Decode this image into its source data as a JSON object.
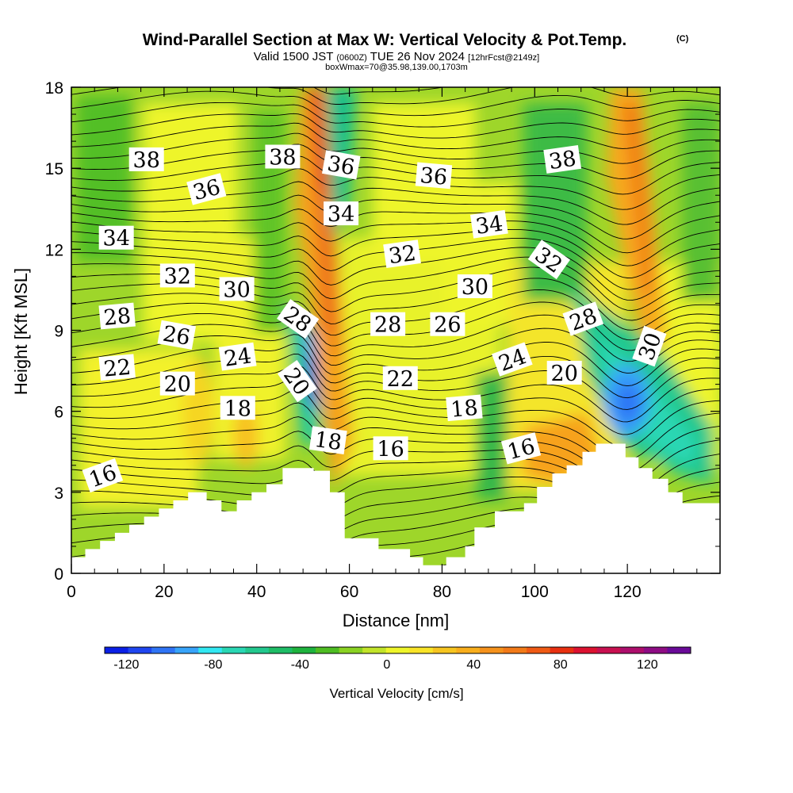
{
  "header": {
    "title": "Wind-Parallel Section at Max W: Vertical Velocity & Pot.Temp.",
    "title_mark": "(C)",
    "valid_prefix": "Valid 1500 JST",
    "valid_utc": "(0600Z)",
    "valid_date": "TUE 26 Nov 2024",
    "forecast": "[12hrFcst@2149z]",
    "box_info": "boxWmax=70@35.98,139.00,1703m"
  },
  "chart_data": {
    "type": "heatmap",
    "xlabel": "Distance [nm]",
    "ylabel": "Height [Kft MSL]",
    "xlim": [
      0,
      140
    ],
    "ylim": [
      0,
      18
    ],
    "x_ticks": [
      "0",
      "20",
      "40",
      "60",
      "80",
      "100",
      "120"
    ],
    "y_ticks": [
      "0",
      "3",
      "6",
      "9",
      "12",
      "15",
      "18"
    ],
    "colorbar": {
      "label": "Vertical Velocity [cm/s]",
      "tick_labels": [
        "-120",
        "-80",
        "-40",
        "0",
        "40",
        "80",
        "120"
      ],
      "min": -130,
      "max": 140,
      "step": 10,
      "colors": [
        "#0a1fe6",
        "#1f46f0",
        "#2f74f5",
        "#38a4fa",
        "#32e8f2",
        "#2ad7b4",
        "#22c88e",
        "#1ebd66",
        "#1eb33e",
        "#4ebd22",
        "#8ad222",
        "#c2e42a",
        "#eef52a",
        "#f9e428",
        "#f6c520",
        "#f8ae1c",
        "#f5921c",
        "#f27a18",
        "#ef5a14",
        "#e83010",
        "#dc1230",
        "#c81050",
        "#ad0e6c",
        "#8e0c84",
        "#6a0a98"
      ]
    },
    "contour_variable": "Pot.Temp. (C)",
    "contour_labels": [
      {
        "text": "38",
        "x": 16.2,
        "y": 15.3,
        "angle": 0
      },
      {
        "text": "38",
        "x": 45.6,
        "y": 15.4,
        "angle": 0
      },
      {
        "text": "36",
        "x": 58.2,
        "y": 15.1,
        "angle": 10
      },
      {
        "text": "36",
        "x": 78.2,
        "y": 14.7,
        "angle": 5
      },
      {
        "text": "38",
        "x": 106.0,
        "y": 15.3,
        "angle": -8
      },
      {
        "text": "36",
        "x": 29.2,
        "y": 14.2,
        "angle": -15
      },
      {
        "text": "34",
        "x": 9.7,
        "y": 12.4,
        "angle": 0
      },
      {
        "text": "34",
        "x": 58.2,
        "y": 13.3,
        "angle": 0
      },
      {
        "text": "34",
        "x": 90.2,
        "y": 12.9,
        "angle": -8
      },
      {
        "text": "32",
        "x": 22.9,
        "y": 11.0,
        "angle": 0
      },
      {
        "text": "32",
        "x": 71.4,
        "y": 11.8,
        "angle": -8
      },
      {
        "text": "32",
        "x": 103.0,
        "y": 11.6,
        "angle": 35
      },
      {
        "text": "30",
        "x": 35.7,
        "y": 10.5,
        "angle": 0
      },
      {
        "text": "30",
        "x": 87.1,
        "y": 10.6,
        "angle": 0
      },
      {
        "text": "30",
        "x": 124.9,
        "y": 8.4,
        "angle": -70
      },
      {
        "text": "28",
        "x": 9.9,
        "y": 9.5,
        "angle": -5
      },
      {
        "text": "28",
        "x": 48.8,
        "y": 9.4,
        "angle": 35
      },
      {
        "text": "28",
        "x": 68.3,
        "y": 9.2,
        "angle": 0
      },
      {
        "text": "26",
        "x": 22.7,
        "y": 8.8,
        "angle": 10
      },
      {
        "text": "26",
        "x": 81.2,
        "y": 9.2,
        "angle": 0
      },
      {
        "text": "28",
        "x": 110.5,
        "y": 9.4,
        "angle": -20
      },
      {
        "text": "24",
        "x": 35.9,
        "y": 8.0,
        "angle": -8
      },
      {
        "text": "24",
        "x": 95.2,
        "y": 7.9,
        "angle": -20
      },
      {
        "text": "22",
        "x": 9.9,
        "y": 7.6,
        "angle": -5
      },
      {
        "text": "20",
        "x": 22.9,
        "y": 7.0,
        "angle": 0
      },
      {
        "text": "20",
        "x": 48.6,
        "y": 7.1,
        "angle": 55
      },
      {
        "text": "22",
        "x": 71.0,
        "y": 7.2,
        "angle": 0
      },
      {
        "text": "20",
        "x": 106.4,
        "y": 7.4,
        "angle": 0
      },
      {
        "text": "18",
        "x": 35.9,
        "y": 6.1,
        "angle": 0
      },
      {
        "text": "18",
        "x": 84.8,
        "y": 6.1,
        "angle": -5
      },
      {
        "text": "18",
        "x": 55.4,
        "y": 4.9,
        "angle": 8
      },
      {
        "text": "16",
        "x": 68.9,
        "y": 4.6,
        "angle": 0
      },
      {
        "text": "16",
        "x": 97.1,
        "y": 4.6,
        "angle": -15
      },
      {
        "text": "16",
        "x": 6.8,
        "y": 3.6,
        "angle": -20
      }
    ],
    "terrain_profile": [
      [
        0,
        0.6
      ],
      [
        3,
        0.6
      ],
      [
        3,
        0.9
      ],
      [
        6.2,
        0.9
      ],
      [
        6.2,
        1.2
      ],
      [
        9.4,
        1.2
      ],
      [
        9.4,
        1.5
      ],
      [
        12.5,
        1.5
      ],
      [
        12.5,
        1.8
      ],
      [
        15.7,
        1.8
      ],
      [
        15.7,
        2.1
      ],
      [
        18.9,
        2.1
      ],
      [
        18.9,
        2.4
      ],
      [
        22,
        2.4
      ],
      [
        22,
        2.7
      ],
      [
        25.2,
        2.7
      ],
      [
        25.2,
        3.0
      ],
      [
        29.2,
        3.0
      ],
      [
        29.2,
        2.7
      ],
      [
        32.4,
        2.7
      ],
      [
        32.4,
        2.3
      ],
      [
        35.7,
        2.3
      ],
      [
        35.7,
        2.7
      ],
      [
        38.9,
        2.7
      ],
      [
        38.9,
        3.0
      ],
      [
        42.1,
        3.0
      ],
      [
        42.1,
        3.3
      ],
      [
        45.6,
        3.3
      ],
      [
        45.6,
        3.9
      ],
      [
        52.3,
        3.9
      ],
      [
        52.3,
        3.8
      ],
      [
        55.8,
        3.8
      ],
      [
        55.8,
        3.0
      ],
      [
        59,
        3.0
      ],
      [
        59,
        1.3
      ],
      [
        66.3,
        1.3
      ],
      [
        66.3,
        0.9
      ],
      [
        73.1,
        0.9
      ],
      [
        73.1,
        0.6
      ],
      [
        75.9,
        0.6
      ],
      [
        75.9,
        0.3
      ],
      [
        80.9,
        0.3
      ],
      [
        80.9,
        0.6
      ],
      [
        85,
        0.6
      ],
      [
        85,
        1.0
      ],
      [
        87,
        1.0
      ],
      [
        87,
        1.7
      ],
      [
        91.4,
        1.7
      ],
      [
        91.4,
        2.3
      ],
      [
        97.7,
        2.3
      ],
      [
        97.7,
        2.6
      ],
      [
        100.5,
        2.6
      ],
      [
        100.5,
        3.2
      ],
      [
        103.8,
        3.2
      ],
      [
        103.8,
        3.7
      ],
      [
        106.9,
        3.7
      ],
      [
        106.9,
        4.0
      ],
      [
        110.3,
        4.0
      ],
      [
        110.3,
        4.5
      ],
      [
        113.2,
        4.5
      ],
      [
        113.2,
        4.8
      ],
      [
        119.6,
        4.8
      ],
      [
        119.6,
        4.3
      ],
      [
        122.4,
        4.3
      ],
      [
        122.4,
        3.9
      ],
      [
        125.4,
        3.9
      ],
      [
        125.4,
        3.5
      ],
      [
        128.8,
        3.5
      ],
      [
        128.8,
        3.0
      ],
      [
        131.9,
        3.0
      ],
      [
        131.9,
        2.6
      ],
      [
        140,
        2.6
      ]
    ]
  }
}
